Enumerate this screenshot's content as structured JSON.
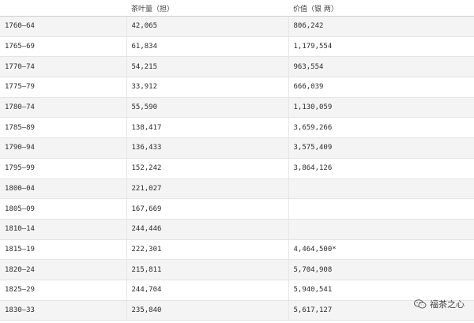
{
  "table": {
    "headers": [
      "",
      "茶叶量（担）",
      "价值（银 两）"
    ],
    "rows": [
      [
        "1760—64",
        "42,065",
        "806,242"
      ],
      [
        "1765—69",
        "61,834",
        "1,179,554"
      ],
      [
        "1770—74",
        "54,215",
        "963,554"
      ],
      [
        "1775—79",
        "33,912",
        "666,039"
      ],
      [
        "1780—74",
        "55,590",
        "1,130,059"
      ],
      [
        "1785—89",
        "138,417",
        "3,659,266"
      ],
      [
        "1790—94",
        "136,433",
        "3,575,409"
      ],
      [
        "1795—99",
        "152,242",
        "3,864,126"
      ],
      [
        "1800—04",
        "221,027",
        ""
      ],
      [
        "1805—09",
        "167,669",
        ""
      ],
      [
        "1810—14",
        "244,446",
        ""
      ],
      [
        "1815—19",
        "222,301",
        "4,464,500*"
      ],
      [
        "1820—24",
        "215,811",
        "5,704,908"
      ],
      [
        "1825—29",
        "244,704",
        "5,940,541"
      ],
      [
        "1830—33",
        "235,840",
        "5,617,127"
      ]
    ]
  },
  "watermark": {
    "text": "福茶之心",
    "icon": "wechat-icon"
  }
}
